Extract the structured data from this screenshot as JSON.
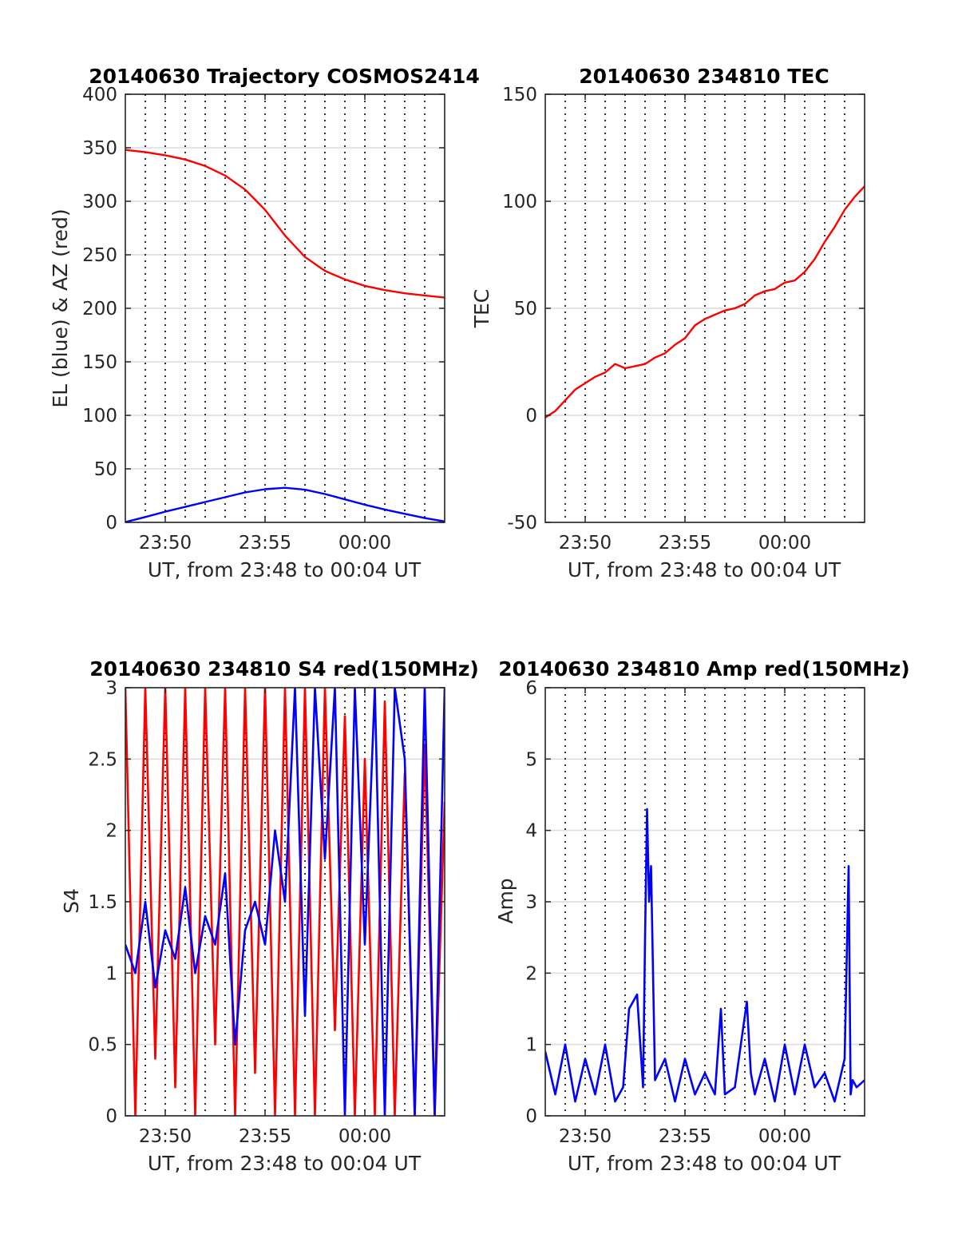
{
  "figure": {
    "background": "#ffffff"
  },
  "chart_data": [
    {
      "id": "trajectory",
      "type": "line",
      "title": "20140630 Trajectory COSMOS2414",
      "xlabel": "UT, from 23:48 to 00:04 UT",
      "ylabel": "EL (blue) & AZ (red)",
      "x_unit": "minutes after 23:48",
      "xlim": [
        0,
        16
      ],
      "ylim": [
        0,
        400
      ],
      "yticks": [
        0,
        50,
        100,
        150,
        200,
        250,
        300,
        350,
        400
      ],
      "xticks": [
        {
          "x": 2,
          "label": "23:50"
        },
        {
          "x": 7,
          "label": "23:55"
        },
        {
          "x": 12,
          "label": "00:00"
        }
      ],
      "grid": true,
      "series": [
        {
          "color": "#ff0000",
          "x": [
            0,
            1,
            2,
            3,
            4,
            5,
            6,
            7,
            8,
            9,
            10,
            11,
            12,
            13,
            14,
            15,
            16
          ],
          "values": [
            348,
            346,
            343,
            339,
            333,
            324,
            311,
            292,
            268,
            248,
            235,
            227,
            221,
            217,
            214,
            212,
            210
          ]
        },
        {
          "color": "#0000ff",
          "x": [
            0,
            1,
            2,
            3,
            4,
            5,
            6,
            7,
            8,
            9,
            10,
            11,
            12,
            13,
            14,
            15,
            16
          ],
          "values": [
            0.3,
            5,
            10,
            14.5,
            19,
            23.5,
            28,
            31,
            32.3,
            30.5,
            26.5,
            21.5,
            16.5,
            12,
            8,
            4,
            0.8
          ]
        }
      ]
    },
    {
      "id": "tec",
      "type": "line",
      "title": "20140630 234810 TEC",
      "xlabel": "UT, from 23:48 to 00:04 UT",
      "ylabel": "TEC",
      "x_unit": "minutes after 23:48",
      "xlim": [
        0,
        16
      ],
      "ylim": [
        -50,
        150
      ],
      "yticks": [
        -50,
        0,
        50,
        100,
        150
      ],
      "xticks": [
        {
          "x": 2,
          "label": "23:50"
        },
        {
          "x": 7,
          "label": "23:55"
        },
        {
          "x": 12,
          "label": "00:00"
        }
      ],
      "grid": true,
      "series": [
        {
          "color": "#ff0000",
          "x": [
            0,
            0.5,
            1,
            1.5,
            2,
            2.5,
            3,
            3.5,
            4,
            4.5,
            5,
            5.5,
            6,
            6.5,
            7,
            7.5,
            8,
            8.5,
            9,
            9.5,
            10,
            10.5,
            11,
            11.5,
            12,
            12.5,
            13,
            13.5,
            14,
            14.5,
            15,
            15.5,
            16
          ],
          "values": [
            -1,
            2,
            7,
            12,
            15,
            18,
            20,
            24,
            22,
            23,
            24,
            27,
            29,
            33,
            36,
            42,
            45,
            47,
            49,
            50,
            52,
            56,
            58,
            59,
            62,
            63,
            67,
            73,
            81,
            88,
            96,
            102,
            107
          ]
        }
      ]
    },
    {
      "id": "s4",
      "type": "line",
      "title": "20140630 234810 S4 red(150MHz)",
      "xlabel": "UT, from 23:48 to 00:04 UT",
      "ylabel": "S4",
      "x_unit": "minutes after 23:48",
      "xlim": [
        0,
        16
      ],
      "ylim": [
        0,
        3
      ],
      "yticks": [
        0,
        0.5,
        1,
        1.5,
        2,
        2.5,
        3
      ],
      "xticks": [
        {
          "x": 2,
          "label": "23:50"
        },
        {
          "x": 7,
          "label": "23:55"
        },
        {
          "x": 12,
          "label": "00:00"
        }
      ],
      "grid": true,
      "series": [
        {
          "color": "#ff0000",
          "x": [
            0,
            0.5,
            1,
            1.5,
            2,
            2.5,
            3,
            3.5,
            4,
            4.5,
            5,
            5.5,
            6,
            6.5,
            7,
            7.5,
            8,
            8.5,
            9,
            9.5,
            10,
            10.5,
            11,
            11.5,
            12,
            12.5,
            13,
            13.5,
            14,
            14.5,
            15,
            15.5,
            16
          ],
          "values": [
            3,
            0,
            3,
            0.4,
            3,
            0.2,
            3,
            0,
            3,
            0.5,
            3,
            0,
            3,
            0.3,
            3,
            0,
            3,
            0,
            3,
            0,
            3,
            0.6,
            2.8,
            0,
            2.5,
            0,
            2.9,
            0,
            2.4,
            0,
            2.6,
            0,
            2.2
          ]
        },
        {
          "color": "#0000ff",
          "x": [
            0,
            0.5,
            1,
            1.5,
            2,
            2.5,
            3,
            3.5,
            4,
            4.5,
            5,
            5.5,
            6,
            6.5,
            7,
            7.5,
            8,
            8.5,
            9,
            9.5,
            10,
            10.5,
            11,
            11.5,
            12,
            12.5,
            13,
            13.5,
            14,
            14.5,
            15,
            15.5,
            16
          ],
          "values": [
            1.2,
            1.0,
            1.5,
            0.9,
            1.3,
            1.1,
            1.6,
            1.0,
            1.4,
            1.2,
            1.7,
            0.5,
            1.3,
            1.5,
            1.2,
            2.0,
            1.5,
            3.0,
            0.7,
            3.0,
            1.8,
            3.0,
            0.0,
            3.0,
            1.2,
            3.0,
            0.0,
            3.0,
            2.5,
            0.0,
            3.0,
            0.0,
            3.0
          ]
        }
      ]
    },
    {
      "id": "amp",
      "type": "line",
      "title": "20140630 234810 Amp red(150MHz)",
      "xlabel": "UT, from 23:48 to 00:04 UT",
      "ylabel": "Amp",
      "x_unit": "minutes after 23:48",
      "xlim": [
        0,
        16
      ],
      "ylim": [
        0,
        6
      ],
      "yticks": [
        0,
        1,
        2,
        3,
        4,
        5,
        6
      ],
      "xticks": [
        {
          "x": 2,
          "label": "23:50"
        },
        {
          "x": 7,
          "label": "23:55"
        },
        {
          "x": 12,
          "label": "00:00"
        }
      ],
      "grid": true,
      "series": [
        {
          "color": "#0000ff",
          "x": [
            0,
            0.5,
            1,
            1.5,
            2,
            2.5,
            3,
            3.5,
            3.9,
            4.2,
            4.6,
            4.9,
            5.0,
            5.1,
            5.2,
            5.3,
            5.5,
            6,
            6.5,
            7,
            7.5,
            8,
            8.5,
            8.8,
            9,
            9.5,
            9.9,
            10.1,
            10.3,
            10.5,
            11,
            11.5,
            12,
            12.5,
            13,
            13.5,
            14,
            14.5,
            15,
            15.2,
            15.3,
            15.4,
            15.6,
            16
          ],
          "values": [
            0.9,
            0.3,
            1.0,
            0.2,
            0.8,
            0.3,
            1.0,
            0.2,
            0.4,
            1.5,
            1.7,
            0.4,
            2.5,
            4.3,
            3.0,
            3.5,
            0.5,
            0.8,
            0.2,
            0.8,
            0.3,
            0.6,
            0.3,
            1.5,
            0.3,
            0.4,
            1.2,
            1.6,
            0.6,
            0.3,
            0.8,
            0.2,
            1.0,
            0.3,
            1.0,
            0.4,
            0.6,
            0.2,
            0.8,
            3.5,
            0.3,
            0.5,
            0.4,
            0.5
          ]
        }
      ]
    }
  ]
}
